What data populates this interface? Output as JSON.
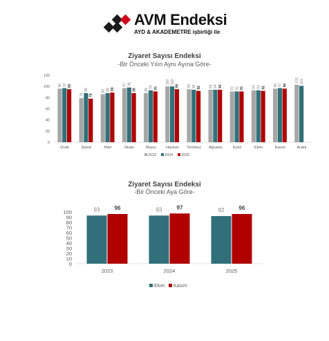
{
  "logo": {
    "title": "AVM Endeksi",
    "subtitle": "AYD & AKADEMETRE işbirliği ile",
    "mark_colors": [
      "#1a1a1a",
      "#d0021b"
    ]
  },
  "chart_data": [
    {
      "type": "bar",
      "title": "Ziyaret Sayısı Endeksi",
      "subtitle": "-Bir Önceki Yılın Aynı Ayına Göre-",
      "categories": [
        "Ocak",
        "Şubat",
        "Mart",
        "Nisan",
        "Mayıs",
        "Haziran",
        "Temmuz",
        "Ağustos",
        "Eylül",
        "Ekim",
        "Kasım",
        "Aralık"
      ],
      "series": [
        {
          "name": "2023",
          "color": "#a6a6a6",
          "values": [
            96,
            79,
            86,
            97,
            88,
            100,
            95,
            94,
            91,
            93,
            96,
            103
          ]
        },
        {
          "name": "2024",
          "color": "#31707a",
          "values": [
            97,
            88,
            88,
            98,
            93,
            100,
            94,
            94,
            91,
            93,
            97,
            101
          ]
        },
        {
          "name": "2025",
          "color": "#b00000",
          "values": [
            95,
            78,
            89,
            88,
            91,
            95,
            92,
            94,
            91,
            92,
            96,
            null
          ]
        }
      ],
      "ylim": [
        0,
        120
      ],
      "yticks": [
        0,
        20,
        40,
        60,
        80,
        100,
        120
      ],
      "legend_position": "bottom",
      "grid": false
    },
    {
      "type": "bar",
      "title": "Ziyaret Sayısı Endeksi",
      "subtitle": "-Bir Önceki Aya Göre-",
      "categories": [
        "2023",
        "2024",
        "2025"
      ],
      "series": [
        {
          "name": "Ekim",
          "color": "#31707a",
          "values": [
            93,
            93,
            92
          ]
        },
        {
          "name": "Kasım",
          "color": "#b00000",
          "values": [
            96,
            97,
            96
          ]
        }
      ],
      "ylim": [
        0,
        100
      ],
      "yticks": [
        0,
        10,
        20,
        30,
        40,
        50,
        60,
        70,
        80,
        90,
        100
      ],
      "legend_position": "bottom",
      "grid": false
    }
  ]
}
